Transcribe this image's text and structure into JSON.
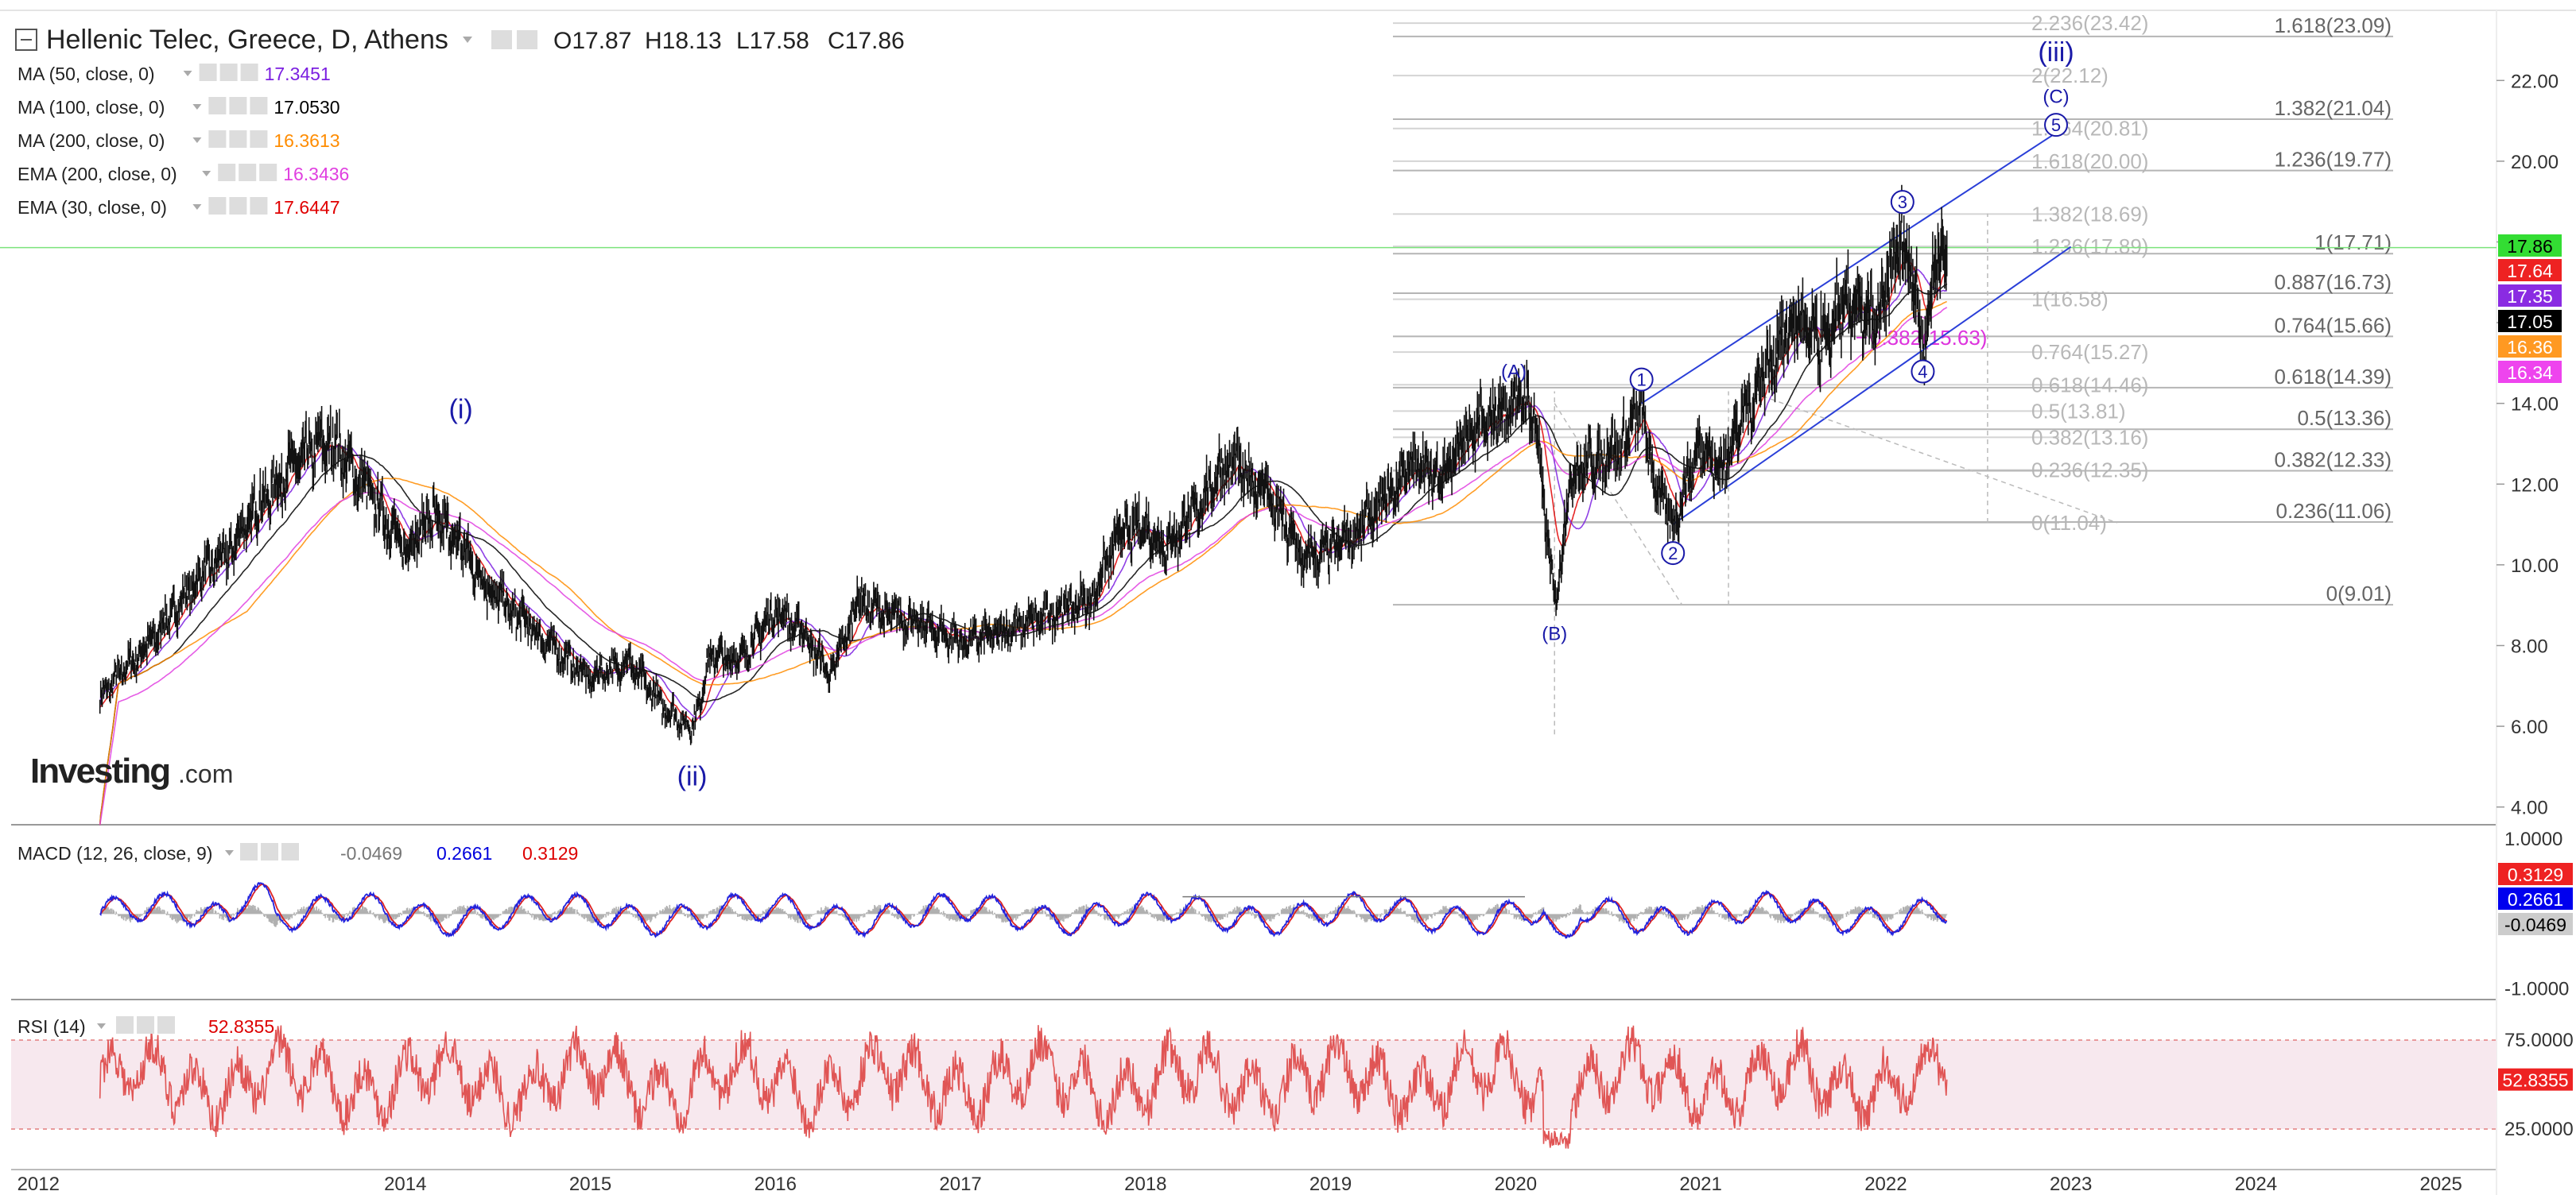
{
  "header": {
    "title": "Hellenic Telec, Greece, D, Athens",
    "ohlc": [
      "O17.87",
      "H18.13",
      "L17.58",
      "C17.86"
    ]
  },
  "indicators": [
    {
      "name": "MA (50, close, 0)",
      "value": "17.3451",
      "color": "#7b1fe0"
    },
    {
      "name": "MA (100, close, 0)",
      "value": "17.0530",
      "color": "#000000"
    },
    {
      "name": "MA (200, close, 0)",
      "value": "16.3613",
      "color": "#ff8c00"
    },
    {
      "name": "EMA (200, close, 0)",
      "value": "16.3436",
      "color": "#e040e0"
    },
    {
      "name": "EMA (30, close, 0)",
      "value": "17.6447",
      "color": "#e00000"
    }
  ],
  "macd_header": {
    "name": "MACD (12, 26, close, 9)",
    "values": [
      "-0.0469",
      "0.2661",
      "0.3129"
    ],
    "colors": [
      "#777777",
      "#0000dd",
      "#dd0000"
    ]
  },
  "rsi_header": {
    "name": "RSI (14)",
    "value": "52.8355",
    "color": "#dd0000"
  },
  "logo": {
    "brand": "Investing",
    "suffix": ".com"
  },
  "price_axis": [
    "22.00",
    "20.00",
    "18.00",
    "16.00",
    "14.00",
    "12.00",
    "10.00",
    "8.00",
    "6.00",
    "4.00"
  ],
  "price_badges": [
    {
      "text": "17.86",
      "bg": "#33dd33",
      "fg": "#000000"
    },
    {
      "text": "17.64",
      "bg": "#ee2222",
      "fg": "#ffffff"
    },
    {
      "text": "17.35",
      "bg": "#8a2be2",
      "fg": "#ffffff"
    },
    {
      "text": "17.05",
      "bg": "#000000",
      "fg": "#ffffff"
    },
    {
      "text": "16.36",
      "bg": "#ff9922",
      "fg": "#ffffff"
    },
    {
      "text": "16.34",
      "bg": "#ee44ee",
      "fg": "#ffffff"
    }
  ],
  "macd_axis": [
    "1.0000",
    "-1.0000"
  ],
  "macd_badges": [
    {
      "text": "0.3129",
      "bg": "#ee2222",
      "fg": "#ffffff"
    },
    {
      "text": "0.2661",
      "bg": "#0000ee",
      "fg": "#ffffff"
    },
    {
      "text": "-0.0469",
      "bg": "#cccccc",
      "fg": "#000000"
    }
  ],
  "rsi_axis": [
    "75.0000",
    "25.0000"
  ],
  "rsi_badge": {
    "text": "52.8355",
    "bg": "#ee2222",
    "fg": "#ffffff"
  },
  "time_axis": [
    "2012",
    "2014",
    "2015",
    "2016",
    "2017",
    "2018",
    "2019",
    "2020",
    "2021",
    "2022",
    "2023",
    "2024",
    "2025"
  ],
  "fib_left": [
    {
      "label": "2.236(23.42)",
      "price": 23.42
    },
    {
      "label": "2(22.12)",
      "price": 22.12
    },
    {
      "label": "1.764(20.81)",
      "price": 20.81
    },
    {
      "label": "1.618(20.00)",
      "price": 20.0
    },
    {
      "label": "1.382(18.69)",
      "price": 18.69
    },
    {
      "label": "1.236(17.89)",
      "price": 17.89
    },
    {
      "label": "1(16.58)",
      "price": 16.58
    },
    {
      "label": "0.764(15.27)",
      "price": 15.27
    },
    {
      "label": "0.618(14.46)",
      "price": 14.46
    },
    {
      "label": "0.5(13.81)",
      "price": 13.81
    },
    {
      "label": "0.382(13.16)",
      "price": 13.16
    },
    {
      "label": "0.236(12.35)",
      "price": 12.35
    },
    {
      "label": "0(11.04)",
      "price": 11.04
    }
  ],
  "fib_right": [
    {
      "label": "1.618(23.09)",
      "price": 23.09
    },
    {
      "label": "1.382(21.04)",
      "price": 21.04
    },
    {
      "label": "1.236(19.77)",
      "price": 19.77
    },
    {
      "label": "1(17.71)",
      "price": 17.71
    },
    {
      "label": "0.887(16.73)",
      "price": 16.73
    },
    {
      "label": "0.764(15.66)",
      "price": 15.66
    },
    {
      "label": "0.618(14.39)",
      "price": 14.39
    },
    {
      "label": "0.5(13.36)",
      "price": 13.36
    },
    {
      "label": "0.382(12.33)",
      "price": 12.33
    },
    {
      "label": "0.236(11.06)",
      "price": 11.06
    },
    {
      "label": "0(9.01)",
      "price": 9.01
    }
  ],
  "retrace_label": {
    "label": "0.382(15.63)",
    "price": 15.63
  },
  "waves": [
    {
      "text": "(i)",
      "style": "big",
      "date": 2014.3,
      "price": 13.1,
      "place": "above"
    },
    {
      "text": "(ii)",
      "style": "big",
      "date": 2015.55,
      "price": 5.7,
      "place": "below"
    },
    {
      "text": "(A)",
      "style": "small",
      "date": 2019.99,
      "price": 14.2,
      "place": "above"
    },
    {
      "text": "(B)",
      "style": "small",
      "date": 2020.21,
      "price": 9.0,
      "place": "below"
    },
    {
      "text": "1",
      "style": "circle",
      "date": 2020.68,
      "price": 14.0,
      "place": "above"
    },
    {
      "text": "2",
      "style": "circle",
      "date": 2020.85,
      "price": 11.0,
      "place": "below"
    },
    {
      "text": "3",
      "style": "circle",
      "date": 2022.09,
      "price": 18.4,
      "place": "above"
    },
    {
      "text": "4",
      "style": "circle",
      "date": 2022.2,
      "price": 15.5,
      "place": "below"
    },
    {
      "text": "5",
      "style": "circle",
      "date": 2022.92,
      "price": 20.9,
      "place": "at"
    },
    {
      "text": "(C)",
      "style": "small",
      "date": 2022.92,
      "price": 21.6,
      "place": "at"
    },
    {
      "text": "(iii)",
      "style": "big",
      "date": 2022.92,
      "price": 22.7,
      "place": "at"
    }
  ],
  "chart_data": [
    {
      "type": "line",
      "title": "Hellenic Telec, Greece, D, Athens",
      "xlabel": "",
      "ylabel": "",
      "x_unit": "year",
      "xlim": [
        2011.87,
        2025.3
      ],
      "ylim": [
        3.6,
        23.6
      ],
      "grid": false,
      "x_ticks": [
        "2012",
        "2014",
        "2015",
        "2016",
        "2017",
        "2018",
        "2019",
        "2020",
        "2021",
        "2022",
        "2023",
        "2024",
        "2025"
      ],
      "y_ticks": [
        22,
        20,
        18,
        16,
        14,
        12,
        10,
        8,
        6,
        4
      ],
      "series": [
        {
          "name": "Hellenic Telec",
          "color": "#111111",
          "x": [
            2012.35,
            2012.45,
            2012.6,
            2012.75,
            2012.9,
            2013.05,
            2013.2,
            2013.4,
            2013.6,
            2013.8,
            2014.0,
            2014.15,
            2014.3,
            2014.45,
            2014.6,
            2014.8,
            2015.0,
            2015.2,
            2015.4,
            2015.55,
            2015.65,
            2015.8,
            2016.0,
            2016.15,
            2016.3,
            2016.45,
            2016.6,
            2016.8,
            2017.0,
            2017.2,
            2017.4,
            2017.55,
            2017.7,
            2017.85,
            2018.0,
            2018.1,
            2018.25,
            2018.45,
            2018.65,
            2018.85,
            2019.0,
            2019.15,
            2019.3,
            2019.45,
            2019.6,
            2019.75,
            2019.9,
            2020.0,
            2020.1,
            2020.21,
            2020.3,
            2020.45,
            2020.6,
            2020.68,
            2020.75,
            2020.85,
            2021.0,
            2021.1,
            2021.2,
            2021.35,
            2021.5,
            2021.65,
            2021.8,
            2021.95,
            2022.09,
            2022.15,
            2022.2,
            2022.27,
            2022.33
          ],
          "values": [
            6.7,
            7.3,
            7.9,
            8.9,
            9.7,
            10.4,
            11.4,
            12.5,
            13.1,
            11.8,
            10.4,
            11.2,
            10.5,
            9.4,
            8.8,
            7.9,
            7.2,
            7.6,
            6.5,
            5.9,
            7.8,
            7.6,
            8.9,
            8.3,
            7.3,
            9.1,
            8.8,
            8.5,
            8.1,
            8.3,
            8.6,
            8.9,
            9.1,
            10.7,
            11.0,
            10.4,
            11.2,
            12.6,
            11.8,
            10.2,
            10.3,
            10.9,
            11.6,
            12.6,
            12.1,
            13.3,
            13.6,
            14.2,
            13.8,
            9.0,
            12.2,
            12.7,
            13.0,
            14.0,
            12.1,
            11.0,
            13.1,
            12.3,
            13.4,
            14.8,
            16.1,
            15.4,
            16.6,
            15.8,
            18.4,
            16.8,
            15.5,
            17.3,
            17.86
          ]
        }
      ],
      "moving_averages": [
        "MA (50, close, 0)",
        "MA (100, close, 0)",
        "MA (200, close, 0)",
        "EMA (200, close, 0)",
        "EMA (30, close, 0)"
      ]
    },
    {
      "type": "line",
      "title": "MACD (12, 26, close, 9)",
      "xlim": [
        2011.87,
        2025.3
      ],
      "ylim": [
        -1.1,
        1.15
      ],
      "y_ticks": [
        1.0,
        -1.0
      ],
      "last_values": {
        "histogram": -0.0469,
        "macd": 0.2661,
        "signal": 0.3129
      }
    },
    {
      "type": "line",
      "title": "RSI (14)",
      "xlim": [
        2011.87,
        2025.3
      ],
      "ylim": [
        4,
        96
      ],
      "y_ticks": [
        75,
        25
      ],
      "band": [
        30,
        70
      ],
      "last_value": 52.8355
    }
  ]
}
